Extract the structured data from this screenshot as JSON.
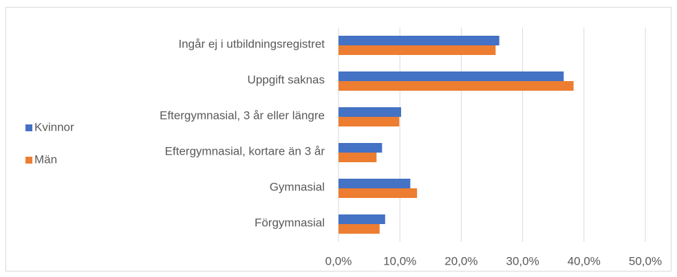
{
  "chart_data": {
    "type": "bar",
    "orientation": "horizontal",
    "categories": [
      "Ingår ej i utbildningsregistret",
      "Uppgift saknas",
      "Eftergymnasial, 3 år eller längre",
      "Eftergymnasial, kortare än 3 år",
      "Gymnasial",
      "Förgymnasial"
    ],
    "series": [
      {
        "name": "Kvinnor",
        "color": "#4472c4",
        "values": [
          26.2,
          36.7,
          10.2,
          7.1,
          11.7,
          7.6
        ]
      },
      {
        "name": "Män",
        "color": "#ed7d31",
        "values": [
          25.6,
          38.3,
          9.9,
          6.2,
          12.8,
          6.7
        ]
      }
    ],
    "xlim": [
      0,
      50
    ],
    "xticks": [
      {
        "value": 0,
        "label": "0,0%"
      },
      {
        "value": 10,
        "label": "10,0%"
      },
      {
        "value": 20,
        "label": "20,0%"
      },
      {
        "value": 30,
        "label": "30,0%"
      },
      {
        "value": 40,
        "label": "40,0%"
      },
      {
        "value": 50,
        "label": "50,0%"
      }
    ],
    "grid": true,
    "legend": "left"
  }
}
